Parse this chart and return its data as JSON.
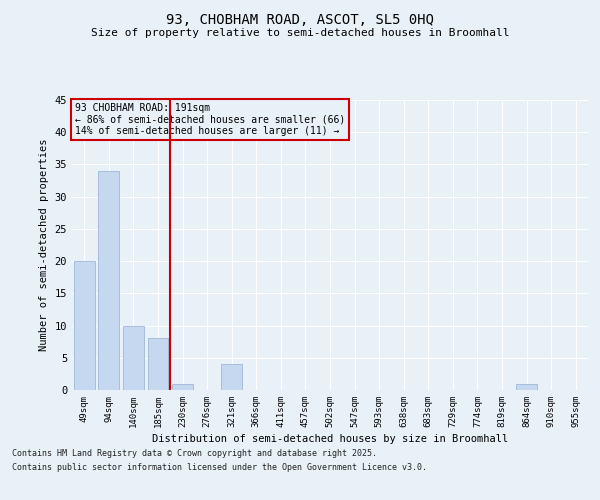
{
  "title": "93, CHOBHAM ROAD, ASCOT, SL5 0HQ",
  "subtitle": "Size of property relative to semi-detached houses in Broomhall",
  "xlabel": "Distribution of semi-detached houses by size in Broomhall",
  "ylabel": "Number of semi-detached properties",
  "categories": [
    "49sqm",
    "94sqm",
    "140sqm",
    "185sqm",
    "230sqm",
    "276sqm",
    "321sqm",
    "366sqm",
    "411sqm",
    "457sqm",
    "502sqm",
    "547sqm",
    "593sqm",
    "638sqm",
    "683sqm",
    "729sqm",
    "774sqm",
    "819sqm",
    "864sqm",
    "910sqm",
    "955sqm"
  ],
  "values": [
    20,
    34,
    10,
    8,
    1,
    0,
    4,
    0,
    0,
    0,
    0,
    0,
    0,
    0,
    0,
    0,
    0,
    0,
    1,
    0,
    0
  ],
  "bar_color": "#c5d8f0",
  "bar_edgecolor": "#a0b8d8",
  "vline_x": 3.5,
  "vline_color": "#cc0000",
  "ylim": [
    0,
    45
  ],
  "yticks": [
    0,
    5,
    10,
    15,
    20,
    25,
    30,
    35,
    40,
    45
  ],
  "annotation_title": "93 CHOBHAM ROAD: 191sqm",
  "annotation_line1": "← 86% of semi-detached houses are smaller (66)",
  "annotation_line2": "14% of semi-detached houses are larger (11) →",
  "annotation_box_color": "#cc0000",
  "background_color": "#e8f0f8",
  "grid_color": "#ffffff",
  "footnote_line1": "Contains HM Land Registry data © Crown copyright and database right 2025.",
  "footnote_line2": "Contains public sector information licensed under the Open Government Licence v3.0."
}
